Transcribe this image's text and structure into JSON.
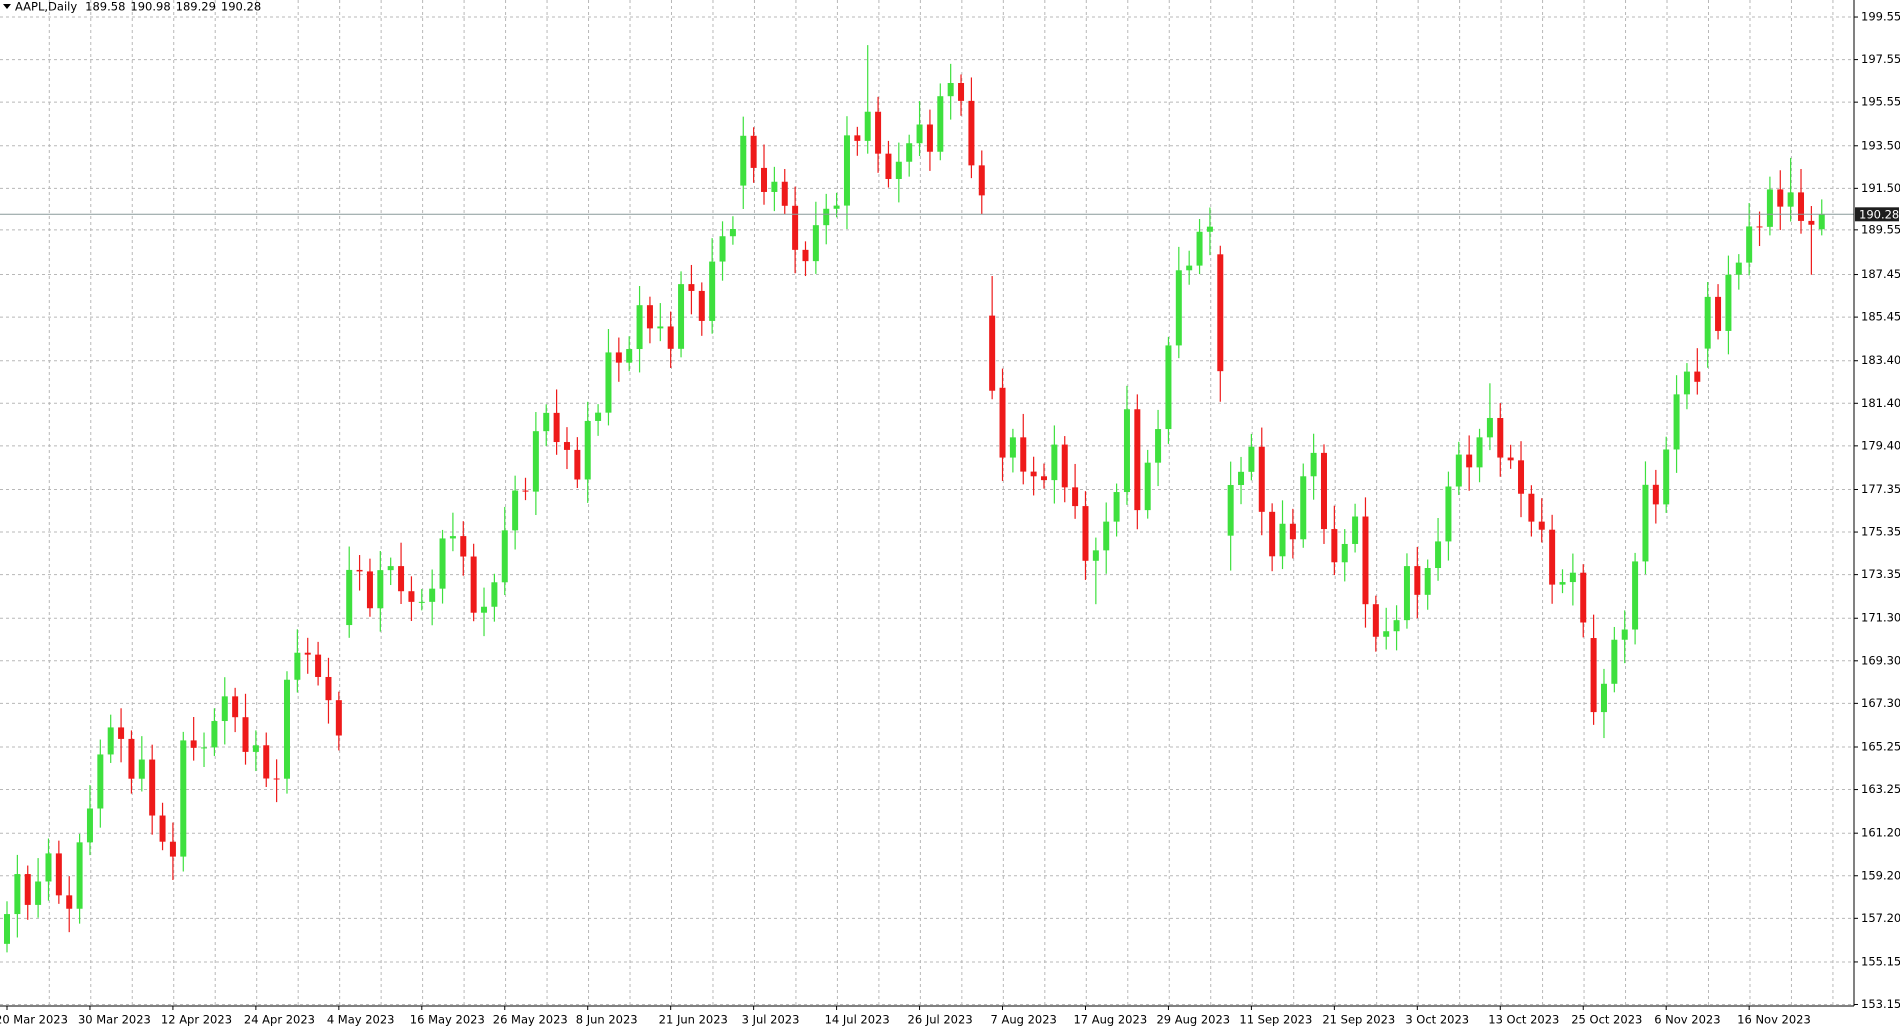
{
  "chart_data": {
    "type": "candlestick",
    "title": "AAPL,Daily",
    "up_color": "#3ee03e",
    "down_color": "#ee1a1a",
    "grid": true,
    "categories": [
      "20 Mar 2023",
      "21 Mar 2023",
      "22 Mar 2023",
      "23 Mar 2023",
      "24 Mar 2023",
      "27 Mar 2023",
      "28 Mar 2023",
      "29 Mar 2023",
      "30 Mar 2023",
      "31 Mar 2023",
      "3 Apr 2023",
      "4 Apr 2023",
      "5 Apr 2023",
      "6 Apr 2023",
      "10 Apr 2023",
      "11 Apr 2023",
      "12 Apr 2023",
      "13 Apr 2023",
      "14 Apr 2023",
      "17 Apr 2023",
      "18 Apr 2023",
      "19 Apr 2023",
      "20 Apr 2023",
      "21 Apr 2023",
      "24 Apr 2023",
      "25 Apr 2023",
      "26 Apr 2023",
      "27 Apr 2023",
      "28 Apr 2023",
      "1 May 2023",
      "2 May 2023",
      "3 May 2023",
      "4 May 2023",
      "5 May 2023",
      "8 May 2023",
      "9 May 2023",
      "10 May 2023",
      "11 May 2023",
      "12 May 2023",
      "15 May 2023",
      "16 May 2023",
      "17 May 2023",
      "18 May 2023",
      "19 May 2023",
      "22 May 2023",
      "23 May 2023",
      "24 May 2023",
      "25 May 2023",
      "26 May 2023",
      "30 May 2023",
      "31 May 2023",
      "1 Jun 2023",
      "2 Jun 2023",
      "5 Jun 2023",
      "6 Jun 2023",
      "7 Jun 2023",
      "8 Jun 2023",
      "9 Jun 2023",
      "12 Jun 2023",
      "13 Jun 2023",
      "14 Jun 2023",
      "15 Jun 2023",
      "16 Jun 2023",
      "20 Jun 2023",
      "21 Jun 2023",
      "22 Jun 2023",
      "23 Jun 2023",
      "26 Jun 2023",
      "27 Jun 2023",
      "28 Jun 2023",
      "29 Jun 2023",
      "30 Jun 2023",
      "3 Jul 2023",
      "5 Jul 2023",
      "6 Jul 2023",
      "7 Jul 2023",
      "10 Jul 2023",
      "11 Jul 2023",
      "12 Jul 2023",
      "13 Jul 2023",
      "14 Jul 2023",
      "17 Jul 2023",
      "18 Jul 2023",
      "19 Jul 2023",
      "20 Jul 2023",
      "21 Jul 2023",
      "24 Jul 2023",
      "25 Jul 2023",
      "26 Jul 2023",
      "27 Jul 2023",
      "28 Jul 2023",
      "31 Jul 2023",
      "1 Aug 2023",
      "2 Aug 2023",
      "3 Aug 2023",
      "4 Aug 2023",
      "7 Aug 2023",
      "8 Aug 2023",
      "9 Aug 2023",
      "10 Aug 2023",
      "11 Aug 2023",
      "14 Aug 2023",
      "15 Aug 2023",
      "16 Aug 2023",
      "17 Aug 2023",
      "18 Aug 2023",
      "21 Aug 2023",
      "22 Aug 2023",
      "23 Aug 2023",
      "24 Aug 2023",
      "25 Aug 2023",
      "28 Aug 2023",
      "29 Aug 2023",
      "30 Aug 2023",
      "31 Aug 2023",
      "1 Sep 2023",
      "5 Sep 2023",
      "6 Sep 2023",
      "7 Sep 2023",
      "8 Sep 2023",
      "11 Sep 2023",
      "12 Sep 2023",
      "13 Sep 2023",
      "14 Sep 2023",
      "15 Sep 2023",
      "18 Sep 2023",
      "19 Sep 2023",
      "20 Sep 2023",
      "21 Sep 2023",
      "22 Sep 2023",
      "25 Sep 2023",
      "26 Sep 2023",
      "27 Sep 2023",
      "28 Sep 2023",
      "29 Sep 2023",
      "2 Oct 2023",
      "3 Oct 2023",
      "4 Oct 2023",
      "5 Oct 2023",
      "6 Oct 2023",
      "9 Oct 2023",
      "10 Oct 2023",
      "11 Oct 2023",
      "12 Oct 2023",
      "13 Oct 2023",
      "16 Oct 2023",
      "17 Oct 2023",
      "18 Oct 2023",
      "19 Oct 2023",
      "20 Oct 2023",
      "23 Oct 2023",
      "24 Oct 2023",
      "25 Oct 2023",
      "26 Oct 2023",
      "27 Oct 2023",
      "30 Oct 2023",
      "31 Oct 2023",
      "1 Nov 2023",
      "2 Nov 2023",
      "3 Nov 2023",
      "6 Nov 2023",
      "7 Nov 2023",
      "8 Nov 2023",
      "9 Nov 2023",
      "10 Nov 2023",
      "13 Nov 2023",
      "14 Nov 2023",
      "15 Nov 2023",
      "16 Nov 2023",
      "17 Nov 2023",
      "20 Nov 2023",
      "21 Nov 2023",
      "22 Nov 2023",
      "24 Nov 2023",
      "27 Nov 2023",
      "28 Nov 2023"
    ],
    "open": [
      156.0,
      157.4,
      159.28,
      157.83,
      158.93,
      160.25,
      158.28,
      157.65,
      160.77,
      162.36,
      164.9,
      166.17,
      165.63,
      163.76,
      164.66,
      162.03,
      160.8,
      160.1,
      165.56,
      165.21,
      165.23,
      166.47,
      167.63,
      166.65,
      165.02,
      165.33,
      163.77,
      163.76,
      168.41,
      169.68,
      169.59,
      168.54,
      167.45,
      170.98,
      173.57,
      173.5,
      171.77,
      173.56,
      173.75,
      172.57,
      172.07,
      172.07,
      172.69,
      175.05,
      175.16,
      174.2,
      171.56,
      171.84,
      172.99,
      175.43,
      177.3,
      177.25,
      180.09,
      180.95,
      179.58,
      179.21,
      177.82,
      180.57,
      180.96,
      183.79,
      183.31,
      183.95,
      186.01,
      184.92,
      185.01,
      183.96,
      187.0,
      186.68,
      185.27,
      188.06,
      189.25,
      191.63,
      193.97,
      192.46,
      191.33,
      191.81,
      190.68,
      188.61,
      188.08,
      189.77,
      190.54,
      190.69,
      193.99,
      193.73,
      195.1,
      193.13,
      191.94,
      192.75,
      193.62,
      194.5,
      193.22,
      195.83,
      196.45,
      195.61,
      192.58,
      185.52,
      182.13,
      178.85,
      179.8,
      178.19,
      177.97,
      177.79,
      179.46,
      177.45,
      176.57,
      174.0,
      174.49,
      175.84,
      177.23,
      181.12,
      176.38,
      178.61,
      180.19,
      184.12,
      187.65,
      187.87,
      189.46,
      188.4,
      175.18,
      177.56,
      178.18,
      179.36,
      176.3,
      174.21,
      175.74,
      175.01,
      177.97,
      179.07,
      175.49,
      173.93,
      174.79,
      176.08,
      171.96,
      170.43,
      170.69,
      171.21,
      173.75,
      172.4,
      173.66,
      174.91,
      177.49,
      178.99,
      178.39,
      179.8,
      180.71,
      178.85,
      178.72,
      177.15,
      175.84,
      175.46,
      172.88,
      173.0,
      173.44,
      170.37,
      166.89,
      168.22,
      170.29,
      170.77,
      173.97,
      177.57,
      176.65,
      179.23,
      181.82,
      182.89,
      183.97,
      186.4,
      184.8,
      187.44,
      188.01,
      189.71,
      189.69,
      191.45,
      190.64,
      191.31,
      189.97,
      189.58
    ],
    "high": [
      158.0,
      160.18,
      159.68,
      160.03,
      160.95,
      160.85,
      159.18,
      161.17,
      163.46,
      165.6,
      166.77,
      167.07,
      166.03,
      165.76,
      165.36,
      162.63,
      161.7,
      165.96,
      166.66,
      165.93,
      167.07,
      168.53,
      168.03,
      167.75,
      166.03,
      165.93,
      164.67,
      168.81,
      170.78,
      170.38,
      170.19,
      169.44,
      167.85,
      174.67,
      174.27,
      174.1,
      174.46,
      174.15,
      174.85,
      173.27,
      172.67,
      173.59,
      175.45,
      176.26,
      175.86,
      174.8,
      172.74,
      173.39,
      176.53,
      178.0,
      177.9,
      180.99,
      181.35,
      182.05,
      180.28,
      179.81,
      181.47,
      181.36,
      184.89,
      184.49,
      184.55,
      186.91,
      186.41,
      186.11,
      185.71,
      187.6,
      187.9,
      187.08,
      189.16,
      189.95,
      190.19,
      194.87,
      194.37,
      193.56,
      192.51,
      192.41,
      191.58,
      189.01,
      190.87,
      191.24,
      191.29,
      194.89,
      194.39,
      198.23,
      195.8,
      193.73,
      193.65,
      194.02,
      195.6,
      195.2,
      196.43,
      197.35,
      196.85,
      196.71,
      193.28,
      187.38,
      183.03,
      180.2,
      180.9,
      178.89,
      178.57,
      180.36,
      179.86,
      178.55,
      177.27,
      175.09,
      176.74,
      177.63,
      182.22,
      181.82,
      179.21,
      181.09,
      184.52,
      188.75,
      188.57,
      190.06,
      190.6,
      188.8,
      178.66,
      178.88,
      179.96,
      180.26,
      176.7,
      176.84,
      176.44,
      178.57,
      179.97,
      179.47,
      176.59,
      175.49,
      176.68,
      176.98,
      172.36,
      171.79,
      171.91,
      174.35,
      174.65,
      174.06,
      176.01,
      178.19,
      179.59,
      179.89,
      180.2,
      182.34,
      181.41,
      179.45,
      179.62,
      177.55,
      176.94,
      176.16,
      173.6,
      174.34,
      173.84,
      171.47,
      168.92,
      170.89,
      171.67,
      174.37,
      178.67,
      178.27,
      179.83,
      182.72,
      183.29,
      183.99,
      187.1,
      187.0,
      188.34,
      188.41,
      190.81,
      190.41,
      192.05,
      192.35,
      192.93,
      192.41,
      190.67,
      190.98
    ],
    "low": [
      155.6,
      156.3,
      157.13,
      157.23,
      158.03,
      157.88,
      156.55,
      156.95,
      160.17,
      161.46,
      164.5,
      164.53,
      163.06,
      163.16,
      161.13,
      160.4,
      159.0,
      159.4,
      164.61,
      164.31,
      164.83,
      165.37,
      165.95,
      164.42,
      164.12,
      163.37,
      162.66,
      163.06,
      167.81,
      168.69,
      168.14,
      166.35,
      165.09,
      170.38,
      172.6,
      171.37,
      170.67,
      172.86,
      171.97,
      171.17,
      171.67,
      170.97,
      171.99,
      174.45,
      173.3,
      171.16,
      170.46,
      171.14,
      172.39,
      174.53,
      176.85,
      176.15,
      179.39,
      178.98,
      178.31,
      177.42,
      176.72,
      179.87,
      180.36,
      182.41,
      182.91,
      182.85,
      184.22,
      184.32,
      183.06,
      183.56,
      185.58,
      184.57,
      184.67,
      187.16,
      188.85,
      190.53,
      191.76,
      190.73,
      190.43,
      190.28,
      187.51,
      187.38,
      187.48,
      188.87,
      190.14,
      189.59,
      193.03,
      193.13,
      192.23,
      191.54,
      190.84,
      192.05,
      193.02,
      192.32,
      192.82,
      194.73,
      194.91,
      191.98,
      190.27,
      181.59,
      177.75,
      178.15,
      177.59,
      177.07,
      177.39,
      176.69,
      176.75,
      175.97,
      173.1,
      171.96,
      173.39,
      175.14,
      176.63,
      175.48,
      175.98,
      177.51,
      179.49,
      183.52,
      186.97,
      187.47,
      188.36,
      181.47,
      173.54,
      176.66,
      177.78,
      175.2,
      173.51,
      173.61,
      174.11,
      174.61,
      176.87,
      174.79,
      173.33,
      173.03,
      174.39,
      170.86,
      169.73,
      169.83,
      169.79,
      170.81,
      171.3,
      171.7,
      173.06,
      174.01,
      177.09,
      177.29,
      177.69,
      179.2,
      177.95,
      178.32,
      176.05,
      175.14,
      174.86,
      171.98,
      172.48,
      171.9,
      170.4,
      166.29,
      165.67,
      167.82,
      169.19,
      170.07,
      173.37,
      175.75,
      176.25,
      178.13,
      181.12,
      181.81,
      183.07,
      184.4,
      183.7,
      186.74,
      187.41,
      188.79,
      189.29,
      189.54,
      189.94,
      189.37,
      187.44,
      189.29
    ],
    "close": [
      157.4,
      159.28,
      157.83,
      158.93,
      160.25,
      158.28,
      157.65,
      160.77,
      162.36,
      164.9,
      166.17,
      165.63,
      163.76,
      164.66,
      162.03,
      160.8,
      160.1,
      165.56,
      165.21,
      165.23,
      166.47,
      167.63,
      166.65,
      165.02,
      165.33,
      163.77,
      163.76,
      168.41,
      169.68,
      169.59,
      168.54,
      167.45,
      165.79,
      173.57,
      173.5,
      171.77,
      173.56,
      173.75,
      172.57,
      172.07,
      172.07,
      172.69,
      175.05,
      175.16,
      174.2,
      171.56,
      171.84,
      172.99,
      175.43,
      177.3,
      177.25,
      180.09,
      180.95,
      179.58,
      179.21,
      177.82,
      180.57,
      180.96,
      183.79,
      183.31,
      183.95,
      186.01,
      184.92,
      185.01,
      183.96,
      187.0,
      186.68,
      185.27,
      188.06,
      189.25,
      189.59,
      193.97,
      192.46,
      191.33,
      191.81,
      190.68,
      188.61,
      188.08,
      189.77,
      190.54,
      190.69,
      193.99,
      193.73,
      195.1,
      193.13,
      191.94,
      192.75,
      193.62,
      194.5,
      193.22,
      195.83,
      196.45,
      195.61,
      192.58,
      191.17,
      181.99,
      178.85,
      179.8,
      178.19,
      177.97,
      177.79,
      179.46,
      177.45,
      176.57,
      174.0,
      174.49,
      175.84,
      177.23,
      181.12,
      176.38,
      178.61,
      180.19,
      184.12,
      187.65,
      187.87,
      189.46,
      189.7,
      182.91,
      177.56,
      178.18,
      179.36,
      176.3,
      174.21,
      175.74,
      175.01,
      177.97,
      179.07,
      175.49,
      173.93,
      174.79,
      176.08,
      171.96,
      170.43,
      170.69,
      171.21,
      173.75,
      172.4,
      173.66,
      174.91,
      177.49,
      178.99,
      178.39,
      179.8,
      180.71,
      178.85,
      178.72,
      177.15,
      175.84,
      175.46,
      172.88,
      173.0,
      173.44,
      171.1,
      166.89,
      168.22,
      170.29,
      170.77,
      173.97,
      177.57,
      176.65,
      179.23,
      181.82,
      182.89,
      182.41,
      186.4,
      184.8,
      187.44,
      188.01,
      189.71,
      189.69,
      191.45,
      190.64,
      191.31,
      189.97,
      189.79,
      190.28
    ],
    "ylim": [
      153.08,
      200.35
    ],
    "yticks": [
      199.55,
      197.55,
      195.55,
      {
        "value": 193.5,
        "label": "193.50"
      },
      {
        "value": 191.5,
        "label": "191.50"
      },
      189.55,
      187.45,
      185.45,
      {
        "value": 183.4,
        "label": "183.40"
      },
      {
        "value": 181.4,
        "label": "181.40"
      },
      {
        "value": 179.4,
        "label": "179.40"
      },
      177.35,
      175.35,
      173.35,
      {
        "value": 171.3,
        "label": "171.30"
      },
      {
        "value": 169.3,
        "label": "169.30"
      },
      {
        "value": 167.3,
        "label": "167.30"
      },
      165.25,
      163.25,
      {
        "value": 161.2,
        "label": "161.20"
      },
      {
        "value": 159.2,
        "label": "159.20"
      },
      {
        "value": 157.2,
        "label": "157.20"
      },
      155.15,
      153.15
    ],
    "xticks": [
      "20 Mar 2023",
      "30 Mar 2023",
      "12 Apr 2023",
      "24 Apr 2023",
      "4 May 2023",
      "16 May 2023",
      "26 May 2023",
      "8 Jun 2023",
      "21 Jun 2023",
      "3 Jul 2023",
      "14 Jul 2023",
      "26 Jul 2023",
      "7 Aug 2023",
      "17 Aug 2023",
      "29 Aug 2023",
      "11 Sep 2023",
      "21 Sep 2023",
      "3 Oct 2023",
      "13 Oct 2023",
      "25 Oct 2023",
      "6 Nov 2023",
      "16 Nov 2023"
    ]
  }
}
